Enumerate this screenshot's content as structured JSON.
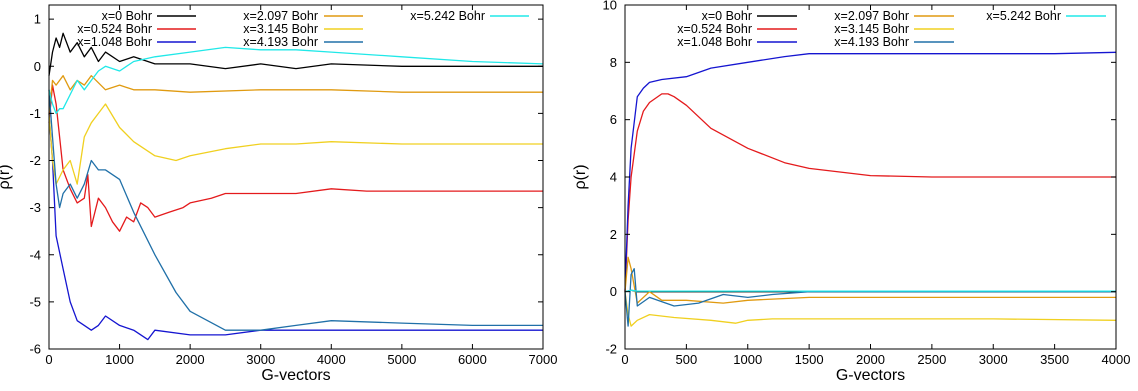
{
  "chart_data": [
    {
      "type": "line",
      "xlabel": "G-vectors",
      "ylabel": "ρ(r)",
      "xlim": [
        0,
        7000
      ],
      "ylim": [
        -6,
        1.3
      ],
      "xticks": [
        0,
        1000,
        2000,
        3000,
        4000,
        5000,
        6000,
        7000
      ],
      "yticks": [
        -6,
        -5,
        -4,
        -3,
        -2,
        -1,
        0,
        1
      ],
      "grid": false,
      "legend_position": "top",
      "series": [
        {
          "name": "x=0 Bohr",
          "color": "#000000",
          "x": [
            0,
            50,
            100,
            150,
            200,
            300,
            400,
            500,
            600,
            700,
            800,
            1000,
            1200,
            1500,
            2000,
            2500,
            3000,
            3500,
            4000,
            5000,
            6000,
            7000
          ],
          "y": [
            -0.2,
            0.3,
            0.6,
            0.4,
            0.7,
            0.3,
            0.5,
            0.2,
            0.4,
            0.1,
            0.3,
            0.1,
            0.2,
            0.05,
            0.05,
            -0.05,
            0.05,
            -0.05,
            0.05,
            0.0,
            0.0,
            0.0
          ]
        },
        {
          "name": "x=0.524 Bohr",
          "color": "#e41a1c",
          "x": [
            0,
            50,
            100,
            150,
            200,
            300,
            400,
            500,
            550,
            600,
            700,
            800,
            900,
            1000,
            1100,
            1200,
            1300,
            1400,
            1500,
            1700,
            1900,
            2000,
            2300,
            2500,
            3000,
            3500,
            4000,
            4500,
            5000,
            6000,
            7000
          ],
          "y": [
            -1.2,
            -0.4,
            -0.8,
            -1.5,
            -2.2,
            -2.6,
            -2.9,
            -2.8,
            -2.3,
            -3.4,
            -2.8,
            -3.0,
            -3.3,
            -3.5,
            -3.2,
            -3.3,
            -2.9,
            -3.0,
            -3.2,
            -3.1,
            -3.0,
            -2.9,
            -2.8,
            -2.7,
            -2.7,
            -2.7,
            -2.6,
            -2.65,
            -2.65,
            -2.65,
            -2.65
          ]
        },
        {
          "name": "x=1.048 Bohr",
          "color": "#1515d0",
          "x": [
            0,
            50,
            100,
            200,
            300,
            400,
            500,
            600,
            700,
            800,
            1000,
            1200,
            1400,
            1500,
            2000,
            2500,
            3000,
            3500,
            4000,
            5000,
            6000,
            7000
          ],
          "y": [
            -1.0,
            -2.0,
            -3.6,
            -4.3,
            -5.0,
            -5.4,
            -5.5,
            -5.6,
            -5.5,
            -5.3,
            -5.5,
            -5.6,
            -5.8,
            -5.6,
            -5.7,
            -5.7,
            -5.6,
            -5.6,
            -5.6,
            -5.6,
            -5.6,
            -5.6
          ]
        },
        {
          "name": "x=2.097 Bohr",
          "color": "#e09a10",
          "x": [
            0,
            50,
            100,
            200,
            300,
            400,
            500,
            600,
            800,
            1000,
            1200,
            1500,
            2000,
            3000,
            4000,
            5000,
            6000,
            7000
          ],
          "y": [
            -1.0,
            -0.3,
            -0.4,
            -0.2,
            -0.5,
            -0.3,
            -0.4,
            -0.2,
            -0.5,
            -0.4,
            -0.5,
            -0.5,
            -0.55,
            -0.5,
            -0.5,
            -0.55,
            -0.55,
            -0.55
          ]
        },
        {
          "name": "x=3.145 Bohr",
          "color": "#f0d020",
          "x": [
            0,
            50,
            100,
            200,
            300,
            400,
            500,
            600,
            700,
            800,
            1000,
            1200,
            1500,
            1800,
            2000,
            2500,
            3000,
            3500,
            4000,
            5000,
            6000,
            7000
          ],
          "y": [
            -1.0,
            -2.0,
            -2.5,
            -2.2,
            -2.0,
            -2.5,
            -1.5,
            -1.2,
            -1.0,
            -0.8,
            -1.3,
            -1.6,
            -1.9,
            -2.0,
            -1.9,
            -1.75,
            -1.65,
            -1.65,
            -1.6,
            -1.65,
            -1.65,
            -1.65
          ]
        },
        {
          "name": "x=4.193 Bohr",
          "color": "#2070a8",
          "x": [
            0,
            50,
            100,
            150,
            200,
            300,
            400,
            500,
            600,
            700,
            800,
            1000,
            1200,
            1500,
            1800,
            2000,
            2500,
            3000,
            3500,
            4000,
            5000,
            6000,
            7000
          ],
          "y": [
            -0.5,
            -1.5,
            -2.5,
            -3.0,
            -2.7,
            -2.5,
            -2.8,
            -2.5,
            -2.0,
            -2.2,
            -2.2,
            -2.4,
            -3.1,
            -4.0,
            -4.8,
            -5.2,
            -5.6,
            -5.6,
            -5.5,
            -5.4,
            -5.45,
            -5.5,
            -5.5
          ]
        },
        {
          "name": "x=5.242 Bohr",
          "color": "#20e8e8",
          "x": [
            0,
            50,
            100,
            150,
            200,
            300,
            400,
            500,
            600,
            700,
            800,
            1000,
            1200,
            1500,
            2000,
            2500,
            3000,
            3500,
            4000,
            5000,
            6000,
            7000
          ],
          "y": [
            -0.5,
            -0.8,
            -1.0,
            -0.9,
            -0.9,
            -0.6,
            -0.3,
            -0.5,
            -0.3,
            -0.1,
            0.0,
            -0.1,
            0.1,
            0.2,
            0.3,
            0.4,
            0.35,
            0.35,
            0.3,
            0.2,
            0.1,
            0.05
          ]
        }
      ]
    },
    {
      "type": "line",
      "xlabel": "G-vectors",
      "ylabel": "ρ(r)",
      "xlim": [
        0,
        4000
      ],
      "ylim": [
        -2,
        10
      ],
      "xticks": [
        0,
        500,
        1000,
        1500,
        2000,
        2500,
        3000,
        3500,
        4000
      ],
      "yticks": [
        -2,
        0,
        2,
        4,
        6,
        8,
        10
      ],
      "grid": false,
      "legend_position": "top",
      "series": [
        {
          "name": "x=0 Bohr",
          "color": "#000000",
          "x": [
            0,
            50,
            100,
            200,
            500,
            1000,
            2000,
            3000,
            4000
          ],
          "y": [
            0.0,
            0.05,
            0.0,
            0.0,
            0.0,
            0.0,
            0.0,
            0.0,
            0.0
          ]
        },
        {
          "name": "x=0.524 Bohr",
          "color": "#e41a1c",
          "x": [
            0,
            25,
            50,
            100,
            150,
            200,
            300,
            350,
            400,
            500,
            700,
            1000,
            1300,
            1500,
            2000,
            2500,
            3000,
            3500,
            4000
          ],
          "y": [
            0.0,
            2.5,
            4.0,
            5.6,
            6.3,
            6.6,
            6.9,
            6.9,
            6.8,
            6.5,
            5.7,
            5.0,
            4.5,
            4.3,
            4.05,
            4.0,
            4.0,
            4.0,
            4.0
          ]
        },
        {
          "name": "x=1.048 Bohr",
          "color": "#1515d0",
          "x": [
            0,
            25,
            50,
            100,
            150,
            200,
            300,
            500,
            700,
            1000,
            1300,
            1500,
            2000,
            2500,
            3000,
            3500,
            4000
          ],
          "y": [
            0.0,
            3.0,
            5.0,
            6.8,
            7.1,
            7.3,
            7.4,
            7.5,
            7.8,
            8.0,
            8.2,
            8.3,
            8.3,
            8.3,
            8.3,
            8.3,
            8.35
          ]
        },
        {
          "name": "x=2.097 Bohr",
          "color": "#e09a10",
          "x": [
            0,
            25,
            50,
            100,
            200,
            300,
            500,
            800,
            1000,
            1500,
            2000,
            3000,
            4000
          ],
          "y": [
            0.0,
            1.2,
            0.8,
            -0.4,
            0.0,
            -0.3,
            -0.3,
            -0.4,
            -0.3,
            -0.2,
            -0.2,
            -0.2,
            -0.2
          ]
        },
        {
          "name": "x=3.145 Bohr",
          "color": "#f0d020",
          "x": [
            0,
            25,
            50,
            100,
            200,
            400,
            700,
            900,
            1000,
            1200,
            1500,
            2000,
            3000,
            4000
          ],
          "y": [
            0.0,
            -0.8,
            -1.2,
            -1.0,
            -0.8,
            -0.9,
            -1.0,
            -1.1,
            -1.0,
            -0.95,
            -0.95,
            -0.95,
            -0.95,
            -1.0
          ]
        },
        {
          "name": "x=4.193 Bohr",
          "color": "#2070a8",
          "x": [
            0,
            25,
            50,
            75,
            100,
            200,
            400,
            600,
            800,
            1000,
            1200,
            1500,
            2000,
            3000,
            4000
          ],
          "y": [
            0.0,
            -1.2,
            0.6,
            0.8,
            -0.5,
            -0.2,
            -0.5,
            -0.4,
            -0.1,
            -0.2,
            -0.1,
            0.0,
            0.0,
            0.0,
            0.0
          ]
        },
        {
          "name": "x=5.242 Bohr",
          "color": "#20e8e8",
          "x": [
            0,
            50,
            100,
            500,
            1000,
            2000,
            3000,
            4000
          ],
          "y": [
            0.0,
            0.05,
            0.02,
            0.02,
            0.02,
            0.02,
            0.02,
            0.02
          ]
        }
      ]
    }
  ]
}
